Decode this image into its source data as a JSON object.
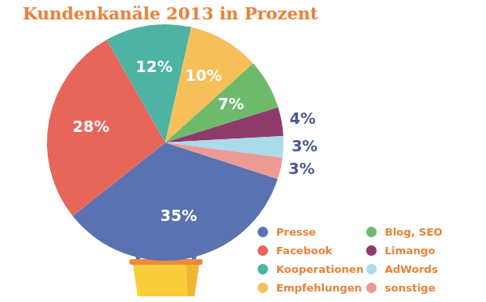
{
  "chart_data": {
    "type": "pie",
    "title": "Kundenkanäle 2013 in Prozent",
    "categories": [
      "Presse",
      "Facebook",
      "Kooperationen",
      "Empfehlungen",
      "Blog, SEO",
      "Limango",
      "AdWords",
      "sonstige"
    ],
    "values": [
      35,
      28,
      12,
      10,
      7,
      4,
      3,
      3
    ],
    "value_labels": [
      "35%",
      "28%",
      "12%",
      "10%",
      "7%",
      "4%",
      "3%",
      "3%"
    ],
    "colors": [
      "#5b72b0",
      "#e8655a",
      "#4db3a2",
      "#f7bf5a",
      "#6dbb6a",
      "#8e3b6b",
      "#a9dbe8",
      "#ee9a94"
    ],
    "data_labels": true,
    "legend": "lower right"
  }
}
